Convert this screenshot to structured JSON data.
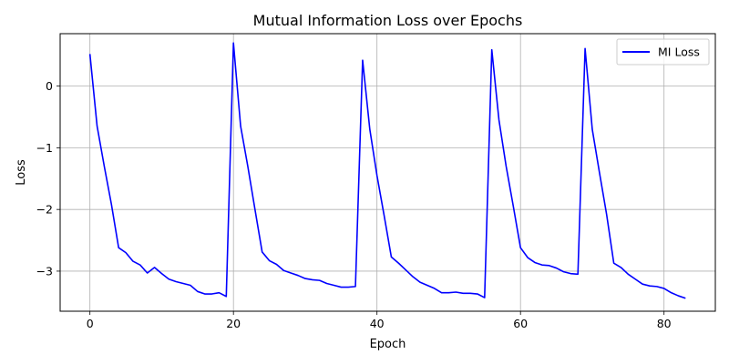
{
  "chart_data": {
    "type": "line",
    "title": "Mutual Information Loss over Epochs",
    "xlabel": "Epoch",
    "ylabel": "Loss",
    "xlim": [
      -4.15,
      87.15
    ],
    "ylim": [
      -3.65,
      0.85
    ],
    "xticks": [
      0,
      20,
      40,
      60,
      80
    ],
    "yticks": [
      0,
      -1,
      -2,
      -3
    ],
    "ytick_labels": [
      "0",
      "−1",
      "−2",
      "−3"
    ],
    "grid": true,
    "legend_position": "upper-right",
    "series": [
      {
        "name": "MI Loss",
        "color": "#0000ff",
        "x": [
          0,
          1,
          2,
          3,
          4,
          5,
          6,
          7,
          8,
          9,
          10,
          11,
          12,
          13,
          14,
          15,
          16,
          17,
          18,
          19,
          20,
          21,
          22,
          23,
          24,
          25,
          26,
          27,
          28,
          29,
          30,
          31,
          32,
          33,
          34,
          35,
          36,
          37,
          38,
          39,
          40,
          41,
          42,
          43,
          44,
          45,
          46,
          47,
          48,
          49,
          50,
          51,
          52,
          53,
          54,
          55,
          56,
          57,
          58,
          59,
          60,
          61,
          62,
          63,
          64,
          65,
          66,
          67,
          68,
          69,
          70,
          71,
          72,
          73,
          74,
          75,
          76,
          77,
          78,
          79,
          80,
          81,
          82,
          83
        ],
        "y": [
          0.52,
          -0.65,
          -1.3,
          -1.92,
          -2.62,
          -2.7,
          -2.84,
          -2.9,
          -3.03,
          -2.94,
          -3.04,
          -3.13,
          -3.17,
          -3.2,
          -3.23,
          -3.33,
          -3.37,
          -3.37,
          -3.35,
          -3.41,
          0.7,
          -0.65,
          -1.3,
          -2.0,
          -2.69,
          -2.83,
          -2.89,
          -2.99,
          -3.03,
          -3.07,
          -3.12,
          -3.14,
          -3.15,
          -3.2,
          -3.23,
          -3.26,
          -3.26,
          -3.25,
          0.42,
          -0.7,
          -1.45,
          -2.1,
          -2.77,
          -2.87,
          -2.98,
          -3.09,
          -3.18,
          -3.23,
          -3.28,
          -3.35,
          -3.35,
          -3.34,
          -3.36,
          -3.36,
          -3.37,
          -3.43,
          0.59,
          -0.55,
          -1.3,
          -1.95,
          -2.62,
          -2.78,
          -2.86,
          -2.9,
          -2.91,
          -2.95,
          -3.01,
          -3.04,
          -3.05,
          0.61,
          -0.7,
          -1.4,
          -2.08,
          -2.87,
          -2.94,
          -3.05,
          -3.13,
          -3.21,
          -3.24,
          -3.25,
          -3.28,
          -3.35,
          -3.4,
          -3.44
        ]
      }
    ]
  }
}
